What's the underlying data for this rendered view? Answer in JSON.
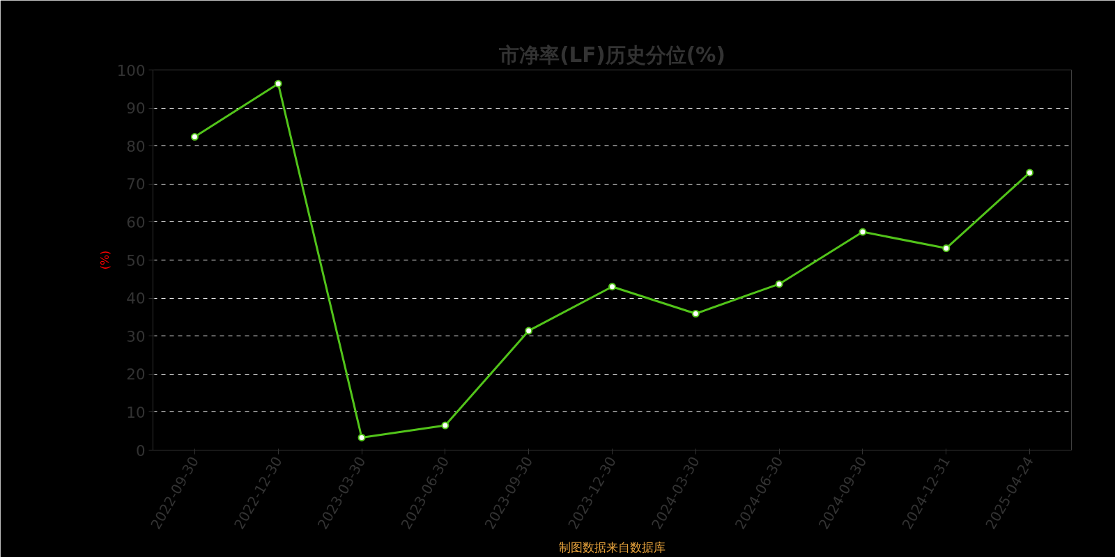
{
  "chart_data": {
    "type": "line",
    "title": "市净率(LF)历史分位(%)",
    "ylabel": "(%)",
    "annotations": [
      "制图数据来自数据库"
    ],
    "categories": [
      "2022-09-30",
      "2022-12-30",
      "2023-03-30",
      "2023-06-30",
      "2023-09-30",
      "2023-12-30",
      "2024-03-30",
      "2024-06-30",
      "2024-09-30",
      "2024-12-31",
      "2025-04-24"
    ],
    "series": [
      {
        "color": "#52c41a",
        "values": [
          82.4,
          96.4,
          3.3,
          6.5,
          31.4,
          43.0,
          35.9,
          43.7,
          57.4,
          53.1,
          73.0
        ]
      }
    ],
    "ylim": [
      0,
      100
    ],
    "yticks": [
      0,
      10,
      20,
      30,
      40,
      50,
      60,
      70,
      80,
      90,
      100
    ],
    "grid": "y",
    "marker": "circle",
    "line_style": "solid"
  }
}
